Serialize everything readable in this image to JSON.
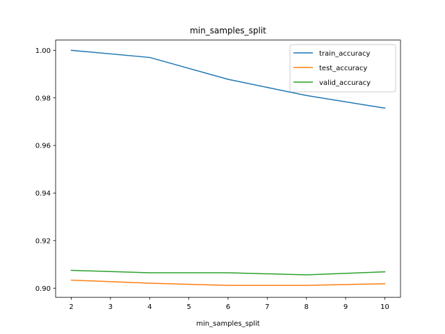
{
  "chart_data": {
    "type": "line",
    "title": "min_samples_split",
    "xlabel": "min_samples_split",
    "ylabel": "",
    "x": [
      2,
      4,
      6,
      8,
      10
    ],
    "series": [
      {
        "name": "train_accuracy",
        "color": "#1f77b4",
        "values": [
          1.0,
          0.997,
          0.9878,
          0.981,
          0.9757
        ]
      },
      {
        "name": "test_accuracy",
        "color": "#ff7f0e",
        "values": [
          0.9034,
          0.9021,
          0.9012,
          0.9012,
          0.9019
        ]
      },
      {
        "name": "valid_accuracy",
        "color": "#2ca02c",
        "values": [
          0.9075,
          0.9065,
          0.9065,
          0.9056,
          0.9069
        ]
      }
    ],
    "xlim": [
      1.6,
      10.4
    ],
    "ylim": [
      0.8962,
      1.0043
    ],
    "xticks": [
      2,
      3,
      4,
      5,
      6,
      7,
      8,
      9,
      10
    ],
    "xtick_labels": [
      "2",
      "3",
      "4",
      "5",
      "6",
      "7",
      "8",
      "9",
      "10"
    ],
    "yticks": [
      0.9,
      0.92,
      0.94,
      0.96,
      0.98,
      1.0
    ],
    "ytick_labels": [
      "0.90",
      "0.92",
      "0.94",
      "0.96",
      "0.98",
      "1.00"
    ],
    "grid": false,
    "legend_position": "top-right"
  }
}
